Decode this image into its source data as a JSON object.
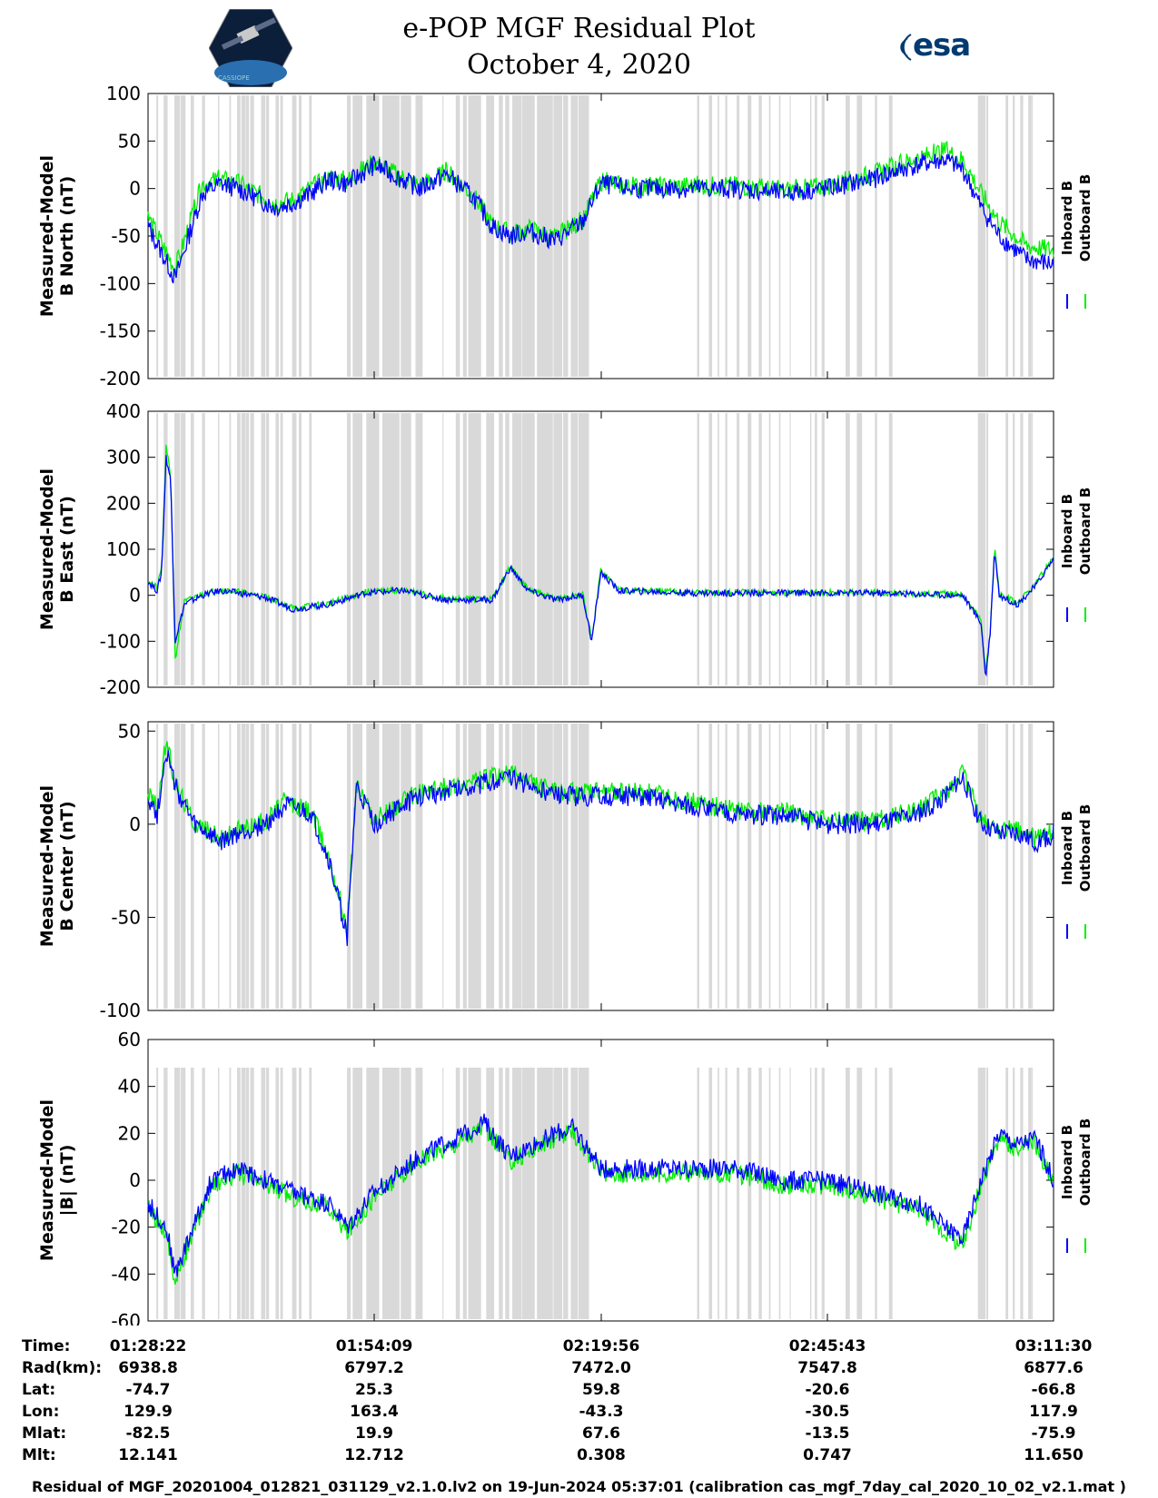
{
  "header": {
    "title_line1": "e-POP MGF Residual Plot",
    "title_line2": "October 4, 2020",
    "left_logo_text": "CASSIOPE",
    "right_logo_text": "esa"
  },
  "colors": {
    "inboard": "#0000ff",
    "outboard": "#00ee00",
    "shading": "#d9d9d9",
    "axis": "#000000"
  },
  "chart_data": [
    {
      "type": "line",
      "ylabel": [
        "Measured-Model",
        "B North (nT)"
      ],
      "ylim": [
        -200,
        100
      ],
      "yticks": [
        100,
        50,
        0,
        -50,
        -100,
        -150,
        -200
      ],
      "grid": false,
      "legend": "right",
      "series": [
        {
          "name": "Inboard B",
          "color": "#0000ff",
          "x": [
            0,
            0.03,
            0.06,
            0.08,
            0.1,
            0.12,
            0.14,
            0.16,
            0.18,
            0.2,
            0.22,
            0.25,
            0.28,
            0.3,
            0.33,
            0.36,
            0.38,
            0.4,
            0.42,
            0.45,
            0.48,
            0.5,
            0.53,
            0.56,
            0.6,
            0.65,
            0.7,
            0.75,
            0.8,
            0.85,
            0.88,
            0.9,
            0.92,
            0.94,
            0.97,
            1.0
          ],
          "y": [
            -40,
            -95,
            -5,
            5,
            0,
            -10,
            -20,
            -15,
            -5,
            10,
            5,
            25,
            10,
            0,
            15,
            -10,
            -40,
            -50,
            -45,
            -55,
            -35,
            5,
            0,
            0,
            0,
            0,
            -5,
            0,
            10,
            25,
            30,
            20,
            -20,
            -50,
            -75,
            -80
          ]
        },
        {
          "name": "Outboard B",
          "color": "#00ee00",
          "x": [
            0,
            0.03,
            0.06,
            0.08,
            0.1,
            0.12,
            0.14,
            0.16,
            0.18,
            0.2,
            0.22,
            0.25,
            0.28,
            0.3,
            0.33,
            0.36,
            0.38,
            0.4,
            0.42,
            0.45,
            0.48,
            0.5,
            0.53,
            0.56,
            0.6,
            0.65,
            0.7,
            0.75,
            0.8,
            0.85,
            0.88,
            0.9,
            0.92,
            0.94,
            0.97,
            1.0
          ],
          "y": [
            -30,
            -85,
            5,
            10,
            5,
            -5,
            -15,
            -12,
            0,
            12,
            8,
            28,
            12,
            3,
            18,
            -8,
            -38,
            -48,
            -42,
            -52,
            -33,
            8,
            2,
            2,
            3,
            3,
            -2,
            3,
            15,
            32,
            40,
            30,
            -5,
            -35,
            -60,
            -65
          ]
        }
      ]
    },
    {
      "type": "line",
      "ylabel": [
        "Measured-Model",
        "B East (nT)"
      ],
      "ylim": [
        -200,
        400
      ],
      "yticks": [
        400,
        300,
        200,
        100,
        0,
        -100,
        -200
      ],
      "grid": false,
      "legend": "right",
      "series": [
        {
          "name": "Inboard B",
          "color": "#0000ff",
          "x": [
            0,
            0.01,
            0.015,
            0.02,
            0.025,
            0.03,
            0.04,
            0.06,
            0.08,
            0.1,
            0.13,
            0.16,
            0.2,
            0.24,
            0.28,
            0.33,
            0.38,
            0.4,
            0.42,
            0.45,
            0.48,
            0.49,
            0.5,
            0.52,
            0.6,
            0.7,
            0.8,
            0.9,
            0.92,
            0.925,
            0.93,
            0.935,
            0.94,
            0.96,
            0.98,
            1.0
          ],
          "y": [
            30,
            10,
            50,
            300,
            250,
            -100,
            -20,
            0,
            10,
            5,
            -5,
            -30,
            -20,
            5,
            10,
            -10,
            -10,
            60,
            10,
            -10,
            0,
            -100,
            50,
            10,
            5,
            5,
            5,
            0,
            -60,
            -180,
            -80,
            100,
            0,
            -20,
            20,
            80
          ]
        },
        {
          "name": "Outboard B",
          "color": "#00ee00",
          "x": [
            0,
            0.01,
            0.015,
            0.02,
            0.025,
            0.03,
            0.04,
            0.06,
            0.08,
            0.1,
            0.13,
            0.16,
            0.2,
            0.24,
            0.28,
            0.33,
            0.38,
            0.4,
            0.42,
            0.45,
            0.48,
            0.49,
            0.5,
            0.52,
            0.6,
            0.7,
            0.8,
            0.9,
            0.92,
            0.925,
            0.93,
            0.935,
            0.94,
            0.96,
            0.98,
            1.0
          ],
          "y": [
            35,
            15,
            60,
            320,
            260,
            -140,
            -15,
            3,
            12,
            7,
            -3,
            -28,
            -18,
            7,
            12,
            -8,
            -8,
            62,
            12,
            -8,
            2,
            -95,
            55,
            12,
            6,
            6,
            6,
            2,
            -55,
            -170,
            -75,
            105,
            2,
            -18,
            22,
            85
          ]
        }
      ]
    },
    {
      "type": "line",
      "ylabel": [
        "Measured-Model",
        "B Center (nT)"
      ],
      "ylim": [
        -100,
        55
      ],
      "yticks": [
        50,
        0,
        -50,
        -100
      ],
      "grid": false,
      "legend": "right",
      "series": [
        {
          "name": "Inboard B",
          "color": "#0000ff",
          "x": [
            0,
            0.01,
            0.02,
            0.03,
            0.05,
            0.08,
            0.1,
            0.13,
            0.15,
            0.18,
            0.2,
            0.22,
            0.23,
            0.25,
            0.28,
            0.3,
            0.35,
            0.4,
            0.45,
            0.5,
            0.55,
            0.6,
            0.65,
            0.7,
            0.75,
            0.8,
            0.85,
            0.88,
            0.9,
            0.92,
            0.94,
            0.96,
            0.98,
            1.0
          ],
          "y": [
            15,
            5,
            40,
            20,
            0,
            -10,
            -5,
            0,
            10,
            5,
            -20,
            -60,
            20,
            0,
            10,
            15,
            20,
            25,
            15,
            15,
            15,
            10,
            5,
            5,
            0,
            0,
            5,
            15,
            25,
            0,
            -5,
            -5,
            -10,
            -5
          ]
        },
        {
          "name": "Outboard B",
          "color": "#00ee00",
          "x": [
            0,
            0.01,
            0.02,
            0.03,
            0.05,
            0.08,
            0.1,
            0.13,
            0.15,
            0.18,
            0.2,
            0.22,
            0.23,
            0.25,
            0.28,
            0.3,
            0.35,
            0.4,
            0.45,
            0.5,
            0.55,
            0.6,
            0.65,
            0.7,
            0.75,
            0.8,
            0.85,
            0.88,
            0.9,
            0.92,
            0.94,
            0.96,
            0.98,
            1.0
          ],
          "y": [
            18,
            8,
            45,
            22,
            2,
            -8,
            -3,
            2,
            12,
            7,
            -18,
            -55,
            22,
            2,
            12,
            17,
            22,
            27,
            17,
            17,
            17,
            12,
            7,
            7,
            2,
            2,
            7,
            17,
            27,
            2,
            -3,
            -3,
            -8,
            -3
          ]
        }
      ]
    },
    {
      "type": "line",
      "ylabel": [
        "Measured-Model",
        "|B| (nT)"
      ],
      "ylim": [
        -60,
        60
      ],
      "yticks": [
        60,
        40,
        20,
        0,
        -20,
        -40,
        -60
      ],
      "grid": false,
      "legend": "right",
      "series": [
        {
          "name": "Inboard B",
          "color": "#0000ff",
          "x": [
            0,
            0.02,
            0.03,
            0.05,
            0.07,
            0.1,
            0.13,
            0.16,
            0.2,
            0.22,
            0.25,
            0.3,
            0.35,
            0.37,
            0.4,
            0.45,
            0.47,
            0.5,
            0.55,
            0.6,
            0.65,
            0.7,
            0.75,
            0.8,
            0.85,
            0.88,
            0.9,
            0.92,
            0.94,
            0.96,
            0.98,
            1.0
          ],
          "y": [
            -10,
            -20,
            -40,
            -20,
            0,
            5,
            0,
            -5,
            -10,
            -20,
            -5,
            10,
            20,
            25,
            10,
            20,
            22,
            5,
            5,
            5,
            5,
            0,
            0,
            -5,
            -10,
            -20,
            -25,
            0,
            20,
            15,
            18,
            0
          ]
        },
        {
          "name": "Outboard B",
          "color": "#00ee00",
          "x": [
            0,
            0.02,
            0.03,
            0.05,
            0.07,
            0.1,
            0.13,
            0.16,
            0.2,
            0.22,
            0.25,
            0.3,
            0.35,
            0.37,
            0.4,
            0.45,
            0.47,
            0.5,
            0.55,
            0.6,
            0.65,
            0.7,
            0.75,
            0.8,
            0.85,
            0.88,
            0.9,
            0.92,
            0.94,
            0.96,
            0.98,
            1.0
          ],
          "y": [
            -12,
            -22,
            -44,
            -22,
            -2,
            3,
            -2,
            -7,
            -12,
            -22,
            -7,
            8,
            18,
            23,
            8,
            18,
            20,
            3,
            3,
            3,
            3,
            -2,
            -2,
            -7,
            -12,
            -22,
            -28,
            -2,
            18,
            13,
            16,
            -2
          ]
        }
      ]
    }
  ],
  "legend_labels": [
    "Inboard B",
    "Outboard B"
  ],
  "orbit_table": {
    "row_labels": [
      "Time:",
      "Rad(km):",
      "Lat:",
      "Lon:",
      "Mlat:",
      "Mlt:"
    ],
    "columns": [
      [
        "01:28:22",
        "6938.8",
        "-74.7",
        "129.9",
        "-82.5",
        "12.141"
      ],
      [
        "01:54:09",
        "6797.2",
        "25.3",
        "163.4",
        "19.9",
        "12.712"
      ],
      [
        "02:19:56",
        "7472.0",
        "59.8",
        "-43.3",
        "67.6",
        "0.308"
      ],
      [
        "02:45:43",
        "7547.8",
        "-20.6",
        "-30.5",
        "-13.5",
        "0.747"
      ],
      [
        "03:11:30",
        "6877.6",
        "-66.8",
        "117.9",
        "-75.9",
        "11.650"
      ]
    ]
  },
  "footer": "Residual of MGF_20201004_012821_031129_v2.1.0.lv2 on 19-Jun-2024 05:37:01 (calibration cas_mgf_7day_cal_2020_10_02_v2.1.mat )"
}
